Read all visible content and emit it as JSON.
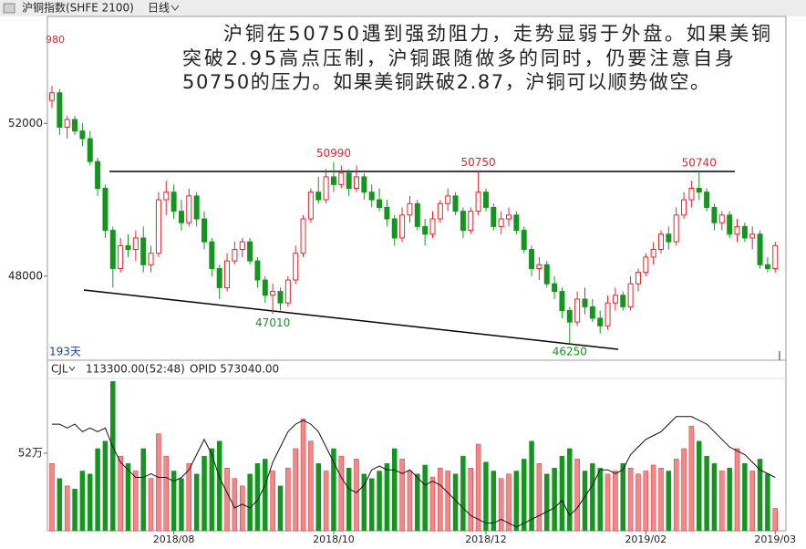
{
  "chart_data": {
    "type": "candlestick",
    "title": "沪铜指数(SHFE 2100)",
    "period": "日线",
    "clipped_label": "980",
    "note_lines": [
      "沪铜在50750遇到强劲阻力，走势显弱于外盘。如果美铜",
      "突破2.95高点压制，沪铜跟随做多的同时，仍要注意自身",
      "50750的压力。如果美铜跌破2.87，沪铜可以顺势做空。"
    ],
    "days_label": "193天",
    "volume_title": "CJL",
    "volume_readout": "113300.00(52:48)",
    "opid_readout": "OPID 573040.00",
    "up_color": "#e8232a",
    "down_color": "#14961e",
    "ylim": [
      45800,
      54800
    ],
    "yticks": [
      48000,
      52000
    ],
    "annotations": [
      50990,
      50750,
      50740,
      47010,
      46250
    ],
    "categories": [
      null,
      null,
      null,
      null,
      null,
      null,
      null,
      null,
      null,
      null,
      null,
      null,
      null,
      null,
      null,
      null,
      "2018/08",
      null,
      null,
      null,
      null,
      null,
      null,
      null,
      null,
      null,
      null,
      null,
      null,
      null,
      null,
      null,
      null,
      null,
      null,
      null,
      null,
      "2018/10",
      null,
      null,
      null,
      null,
      null,
      null,
      null,
      null,
      null,
      null,
      null,
      null,
      null,
      null,
      null,
      null,
      null,
      null,
      null,
      "2018/12",
      null,
      null,
      null,
      null,
      null,
      null,
      null,
      null,
      null,
      null,
      null,
      null,
      null,
      null,
      null,
      null,
      null,
      null,
      null,
      null,
      "2019/02",
      null,
      null,
      null,
      null,
      null,
      null,
      null,
      null,
      null,
      null,
      null,
      null,
      null,
      null,
      null,
      null,
      "2019/03"
    ],
    "ohlc": [
      [
        52600,
        52980,
        52400,
        52800
      ],
      [
        52800,
        52900,
        51700,
        51900
      ],
      [
        51900,
        52200,
        51600,
        52100
      ],
      [
        52100,
        52200,
        51700,
        51800
      ],
      [
        51800,
        52000,
        51400,
        51600
      ],
      [
        51600,
        51800,
        50900,
        51000
      ],
      [
        51000,
        51100,
        50100,
        50300
      ],
      [
        50300,
        50400,
        49000,
        49200
      ],
      [
        49200,
        49300,
        47700,
        48200
      ],
      [
        48200,
        49000,
        48100,
        48800
      ],
      [
        48800,
        49100,
        48500,
        48700
      ],
      [
        48700,
        49200,
        48400,
        49000
      ],
      [
        49000,
        49300,
        48100,
        48300
      ],
      [
        48300,
        48800,
        48100,
        48600
      ],
      [
        48600,
        50200,
        48500,
        50000
      ],
      [
        50000,
        50500,
        49600,
        50200
      ],
      [
        50200,
        50400,
        49500,
        49700
      ],
      [
        49700,
        50000,
        49200,
        49400
      ],
      [
        49400,
        50300,
        49300,
        50100
      ],
      [
        50100,
        50200,
        49300,
        49500
      ],
      [
        49500,
        49700,
        48700,
        48900
      ],
      [
        48900,
        49000,
        48000,
        48200
      ],
      [
        48200,
        48300,
        47400,
        47700
      ],
      [
        47700,
        48600,
        47600,
        48400
      ],
      [
        48400,
        48900,
        48300,
        48700
      ],
      [
        48700,
        49000,
        48500,
        48900
      ],
      [
        48900,
        49000,
        48300,
        48400
      ],
      [
        48400,
        48500,
        47700,
        47900
      ],
      [
        47900,
        48000,
        47300,
        47500
      ],
      [
        47500,
        47800,
        47010,
        47600
      ],
      [
        47600,
        47700,
        47100,
        47300
      ],
      [
        47300,
        48000,
        47200,
        47900
      ],
      [
        47900,
        48800,
        47800,
        48600
      ],
      [
        48600,
        49600,
        48500,
        49500
      ],
      [
        49500,
        50300,
        49400,
        50200
      ],
      [
        50200,
        50600,
        49900,
        50000
      ],
      [
        50000,
        50800,
        49900,
        50600
      ],
      [
        50600,
        50990,
        50200,
        50400
      ],
      [
        50400,
        50900,
        50300,
        50700
      ],
      [
        50700,
        50800,
        50100,
        50300
      ],
      [
        50300,
        50900,
        50200,
        50600
      ],
      [
        50600,
        50700,
        50000,
        50200
      ],
      [
        50200,
        50400,
        49800,
        50000
      ],
      [
        50000,
        50300,
        49700,
        49800
      ],
      [
        49800,
        50000,
        49300,
        49500
      ],
      [
        49500,
        49600,
        48800,
        49000
      ],
      [
        49000,
        49800,
        48900,
        49600
      ],
      [
        49600,
        50100,
        49400,
        49900
      ],
      [
        49900,
        50000,
        49200,
        49300
      ],
      [
        49300,
        49500,
        48800,
        49100
      ],
      [
        49100,
        49700,
        49000,
        49500
      ],
      [
        49500,
        50000,
        49400,
        49900
      ],
      [
        49900,
        50300,
        49700,
        50100
      ],
      [
        50100,
        50200,
        49600,
        49700
      ],
      [
        49700,
        49800,
        49000,
        49200
      ],
      [
        49200,
        49800,
        49100,
        49700
      ],
      [
        49700,
        50750,
        49600,
        50200
      ],
      [
        50200,
        50300,
        49700,
        49800
      ],
      [
        49800,
        49900,
        49200,
        49300
      ],
      [
        49300,
        49700,
        49100,
        49500
      ],
      [
        49500,
        49800,
        49300,
        49600
      ],
      [
        49600,
        49700,
        49100,
        49200
      ],
      [
        49200,
        49300,
        48600,
        48700
      ],
      [
        48700,
        48800,
        48000,
        48200
      ],
      [
        48200,
        48500,
        47900,
        48300
      ],
      [
        48300,
        48400,
        47700,
        47800
      ],
      [
        47800,
        48000,
        47400,
        47600
      ],
      [
        47600,
        47700,
        46900,
        47100
      ],
      [
        47100,
        47200,
        46250,
        46800
      ],
      [
        46800,
        47600,
        46700,
        47400
      ],
      [
        47400,
        47700,
        47000,
        47200
      ],
      [
        47200,
        47400,
        46800,
        46900
      ],
      [
        46900,
        47100,
        46500,
        46700
      ],
      [
        46700,
        47500,
        46600,
        47300
      ],
      [
        47300,
        47700,
        47100,
        47500
      ],
      [
        47500,
        47600,
        47100,
        47200
      ],
      [
        47200,
        48000,
        47100,
        47800
      ],
      [
        47800,
        48200,
        47600,
        48100
      ],
      [
        48100,
        48600,
        48000,
        48500
      ],
      [
        48500,
        48900,
        48300,
        48700
      ],
      [
        48700,
        49200,
        48600,
        49100
      ],
      [
        49100,
        49300,
        48700,
        48900
      ],
      [
        48900,
        49800,
        48800,
        49600
      ],
      [
        49600,
        50200,
        49500,
        50000
      ],
      [
        50000,
        50500,
        49800,
        50300
      ],
      [
        50300,
        50740,
        50000,
        50200
      ],
      [
        50200,
        50300,
        49700,
        49800
      ],
      [
        49800,
        49900,
        49200,
        49400
      ],
      [
        49400,
        49700,
        49200,
        49600
      ],
      [
        49600,
        49700,
        49000,
        49100
      ],
      [
        49100,
        49500,
        48900,
        49300
      ],
      [
        49300,
        49400,
        48900,
        49000
      ],
      [
        49000,
        49300,
        48700,
        49100
      ],
      [
        49100,
        49200,
        48200,
        48300
      ],
      [
        48300,
        48500,
        48100,
        48200
      ],
      [
        48200,
        48900,
        48100,
        48800
      ]
    ],
    "volume": {
      "ylim": [
        0,
        102
      ],
      "yticks": [
        {
          "value": 52,
          "label": "52万"
        }
      ],
      "values": [
        45,
        35,
        30,
        28,
        40,
        38,
        55,
        60,
        100,
        50,
        45,
        40,
        55,
        35,
        65,
        50,
        40,
        35,
        45,
        38,
        50,
        55,
        60,
        42,
        35,
        30,
        38,
        45,
        48,
        40,
        30,
        42,
        55,
        75,
        60,
        45,
        40,
        55,
        50,
        42,
        48,
        38,
        35,
        40,
        45,
        55,
        48,
        40,
        38,
        44,
        36,
        42,
        40,
        38,
        50,
        42,
        58,
        46,
        40,
        35,
        38,
        40,
        48,
        60,
        45,
        38,
        42,
        50,
        55,
        48,
        40,
        45,
        42,
        38,
        40,
        45,
        42,
        38,
        40,
        44,
        42,
        40,
        48,
        55,
        70,
        60,
        50,
        45,
        40,
        42,
        55,
        45,
        40,
        48,
        38,
        15
      ]
    },
    "opid": {
      "color": "#111111",
      "axis": "y2",
      "y2lim": [
        45,
        65
      ],
      "values": [
        59,
        59,
        58.5,
        59,
        58,
        58.5,
        58,
        58.5,
        56,
        54,
        53,
        52,
        52,
        52.5,
        52,
        52,
        51.5,
        52,
        53,
        55,
        57,
        55,
        52,
        50,
        48,
        48.5,
        48,
        49,
        51,
        54,
        56,
        58,
        59,
        59.5,
        59,
        58,
        56,
        54,
        52,
        50.5,
        50,
        51,
        53,
        53.5,
        53,
        53,
        52.5,
        53,
        52,
        51,
        51.5,
        51,
        50,
        49,
        48,
        47,
        46.5,
        46,
        46,
        46.5,
        46,
        45.5,
        46,
        46.5,
        47,
        47.5,
        48,
        49,
        47,
        48,
        49.5,
        51,
        53,
        53,
        52.5,
        53,
        55,
        56,
        57,
        57.5,
        58,
        59,
        60,
        60,
        60,
        59.5,
        59,
        58,
        57,
        56,
        55.5,
        55,
        54,
        53,
        52.5,
        52
      ]
    }
  }
}
